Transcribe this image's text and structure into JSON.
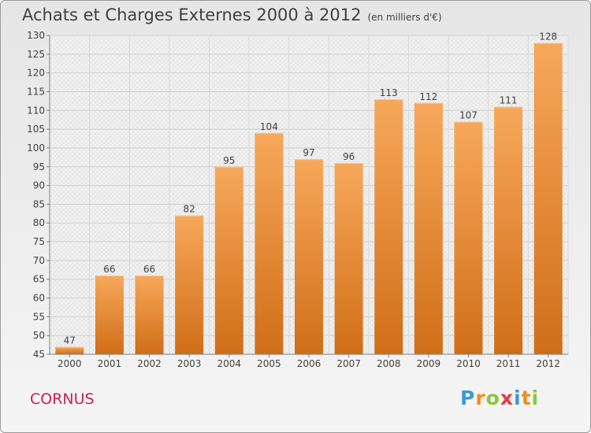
{
  "header": {
    "title": "Achats et Charges Externes 2000 à 2012",
    "subtitle": "(en milliers d'€)"
  },
  "footer": {
    "commune": "CORNUS",
    "logo_letters": [
      "P",
      "r",
      "o",
      "x",
      "i",
      "t",
      "i"
    ],
    "logo_colors": [
      "#3a9ad9",
      "#f08c1e",
      "#8cc63f",
      "#e63c3c",
      "#3a9ad9",
      "#f08c1e",
      "#8cc63f"
    ]
  },
  "chart_data": {
    "type": "bar",
    "title": "Achats et Charges Externes 2000 à 2012",
    "categories": [
      "2000",
      "2001",
      "2002",
      "2003",
      "2004",
      "2005",
      "2006",
      "2007",
      "2008",
      "2009",
      "2010",
      "2011",
      "2012"
    ],
    "values": [
      47,
      66,
      66,
      82,
      95,
      104,
      97,
      96,
      113,
      112,
      107,
      111,
      128
    ],
    "ylim": [
      45,
      130
    ],
    "yticks": [
      45,
      50,
      55,
      60,
      65,
      70,
      75,
      80,
      85,
      90,
      95,
      100,
      105,
      110,
      115,
      120,
      125,
      130
    ],
    "grid": true,
    "bar_color_top": "#f7a85a",
    "bar_color_bottom": "#d06e18"
  }
}
